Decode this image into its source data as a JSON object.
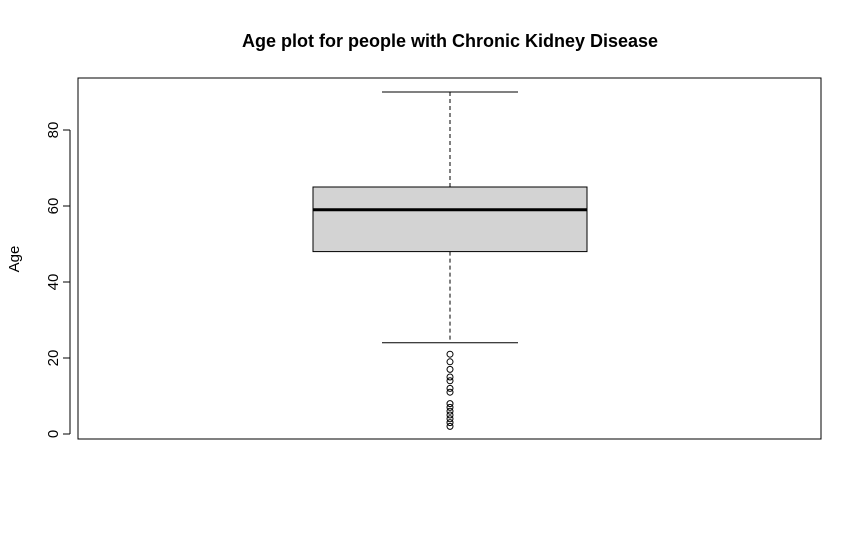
{
  "chart_data": {
    "type": "boxplot",
    "title": "Age plot for people with Chronic Kidney Disease",
    "xlabel": "",
    "ylabel": "Age",
    "ylim": [
      0,
      92
    ],
    "yticks": [
      0,
      20,
      40,
      60,
      80
    ],
    "ytick_labels": [
      "0",
      "20",
      "40",
      "60",
      "80"
    ],
    "grid": false,
    "series": [
      {
        "name": "Age",
        "whisker_low": 24,
        "q1": 48,
        "median": 59,
        "q3": 65,
        "whisker_high": 90,
        "outliers": [
          21,
          19,
          17,
          15,
          14,
          12,
          11,
          8,
          7,
          6,
          5,
          4,
          3,
          2
        ]
      }
    ],
    "colors": {
      "box_fill": "#d3d3d3",
      "stroke": "#000000"
    }
  }
}
